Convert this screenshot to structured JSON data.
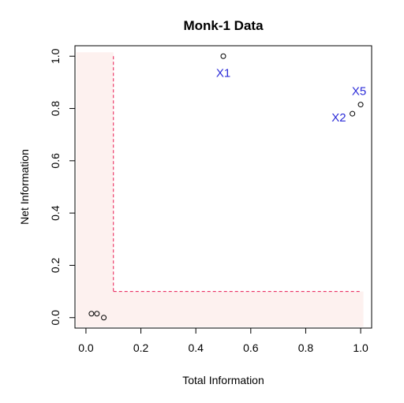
{
  "chart_data": {
    "type": "scatter",
    "title": "Monk-1 Data",
    "xlabel": "Total Information",
    "ylabel": "Net Information",
    "xlim": [
      -0.04,
      1.04
    ],
    "ylim": [
      -0.04,
      1.04
    ],
    "xticks": [
      "0.0",
      "0.2",
      "0.4",
      "0.6",
      "0.8",
      "1.0"
    ],
    "yticks": [
      "0.0",
      "0.2",
      "0.4",
      "0.6",
      "0.8",
      "1.0"
    ],
    "xtick_values": [
      0,
      0.2,
      0.4,
      0.6,
      0.8,
      1.0
    ],
    "ytick_values": [
      0,
      0.2,
      0.4,
      0.6,
      0.8,
      1.0
    ],
    "points": [
      {
        "x": 0.02,
        "y": 0.015
      },
      {
        "x": 0.04,
        "y": 0.015
      },
      {
        "x": 0.065,
        "y": 0.0
      },
      {
        "x": 0.5,
        "y": 1.0
      },
      {
        "x": 0.97,
        "y": 0.78
      },
      {
        "x": 1.0,
        "y": 0.815
      }
    ],
    "point_labels": [
      {
        "text": "X1",
        "x": 0.5,
        "y": 1.0,
        "position": "below"
      },
      {
        "text": "X2",
        "x": 0.97,
        "y": 0.78,
        "position": "left"
      },
      {
        "text": "X5",
        "x": 1.0,
        "y": 0.815,
        "position": "above"
      }
    ],
    "thresholds": {
      "x": 0.1,
      "y": 0.1,
      "x_range": [
        0.1,
        1.0
      ],
      "y_range": [
        0.1,
        1.0
      ]
    },
    "colors": {
      "threshold_line": "#e8174f",
      "shaded_region": "#fdf1ef",
      "label": "#2b2bd8",
      "points": "#000000"
    },
    "grid": false,
    "legend": "none"
  }
}
